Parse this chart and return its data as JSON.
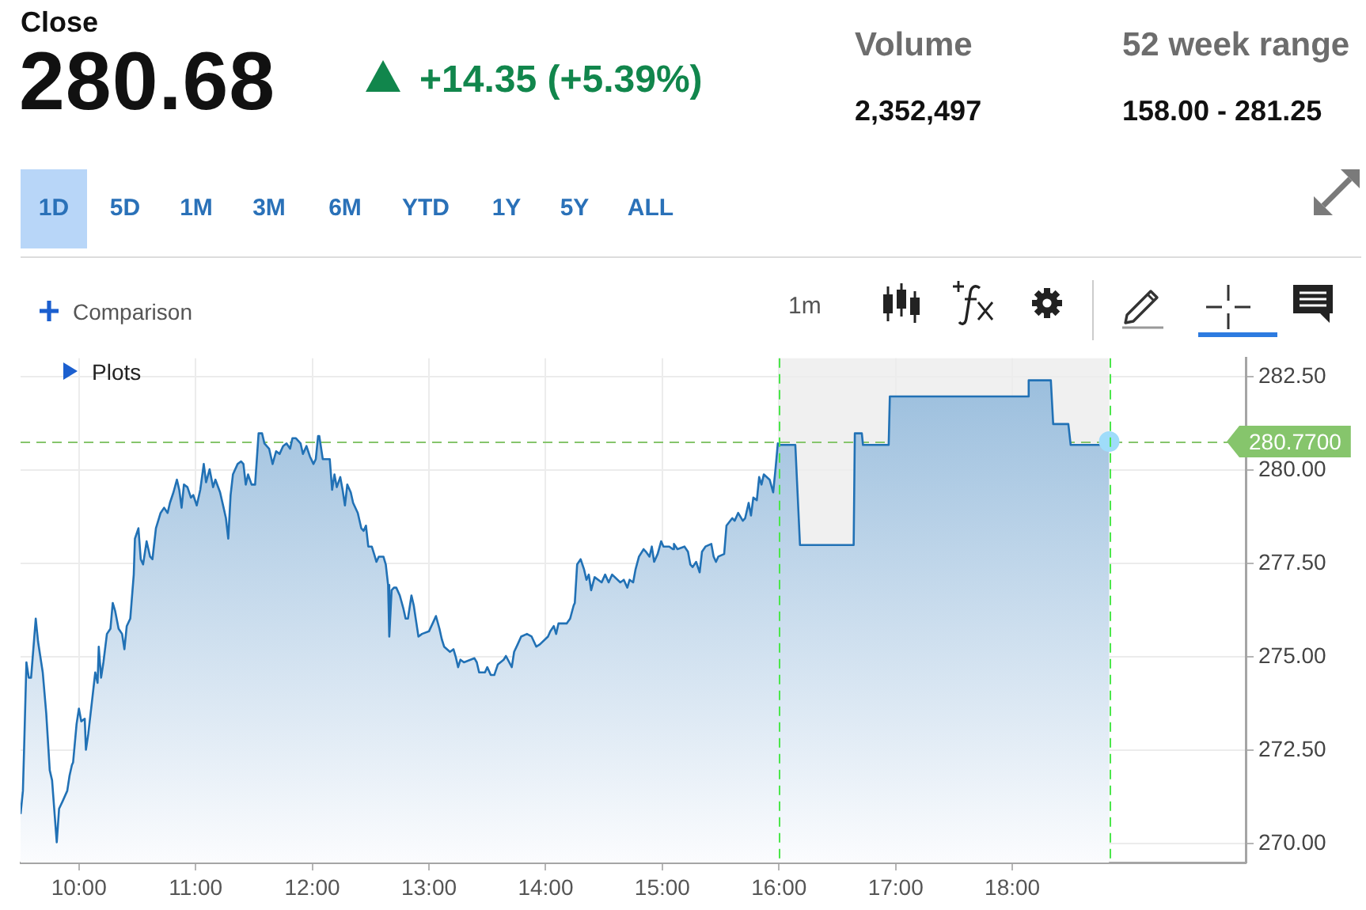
{
  "chart_data": {
    "type": "area",
    "title": "Close",
    "subtitle": "280.68",
    "annotations": [
      "+14.35 (+5.39%)",
      "Volume",
      "2,352,497",
      "52 week range",
      "158.00 - 281.25",
      "1D",
      "5D",
      "1M",
      "3M",
      "6M",
      "YTD",
      "1Y",
      "5Y",
      "ALL",
      "Comparison",
      "1m",
      "Plots"
    ],
    "series": [
      {
        "type": "area",
        "color": "#2171b5",
        "x": [
          9.5,
          9.52,
          9.53,
          9.55,
          9.57,
          9.59,
          9.63,
          9.65,
          9.69,
          9.72,
          9.75,
          9.77,
          9.81,
          9.83,
          9.86,
          9.9,
          9.92,
          9.94,
          9.95,
          9.98,
          10,
          10.02,
          10.05,
          10.06,
          10.08,
          10.11,
          10.14,
          10.16,
          10.17,
          10.19,
          10.21,
          10.24,
          10.27,
          10.29,
          10.31,
          10.34,
          10.37,
          10.39,
          10.41,
          10.44,
          10.47,
          10.48,
          10.51,
          10.53,
          10.55,
          10.58,
          10.61,
          10.63,
          10.66,
          10.7,
          10.73,
          10.76,
          10.78,
          10.81,
          10.84,
          10.86,
          10.88,
          10.9,
          10.93,
          10.96,
          10.98,
          11.01,
          11.04,
          11.07,
          11.09,
          11.12,
          11.15,
          11.17,
          11.21,
          11.24,
          11.26,
          11.28,
          11.3,
          11.32,
          11.36,
          11.39,
          11.41,
          11.43,
          11.45,
          11.48,
          11.51,
          11.54,
          11.57,
          11.59,
          11.63,
          11.66,
          11.69,
          11.72,
          11.75,
          11.78,
          11.81,
          11.83,
          11.86,
          11.9,
          11.92,
          11.95,
          11.98,
          12.01,
          12.03,
          12.05,
          12.06,
          12.09,
          12.15,
          12.17,
          12.19,
          12.21,
          12.24,
          12.26,
          12.28,
          12.3,
          12.33,
          12.35,
          12.39,
          12.42,
          12.44,
          12.46,
          12.48,
          12.51,
          12.53,
          12.55,
          12.57,
          12.61,
          12.63,
          12.65,
          12.66,
          12.68,
          12.7,
          12.72,
          12.75,
          12.78,
          12.8,
          12.82,
          12.85,
          12.87,
          12.89,
          12.91,
          12.94,
          13,
          13.04,
          13.06,
          13.09,
          13.11,
          13.13,
          13.18,
          13.21,
          13.23,
          13.25,
          13.27,
          13.3,
          13.39,
          13.41,
          13.43,
          13.48,
          13.5,
          13.53,
          13.56,
          13.59,
          13.64,
          13.66,
          13.71,
          13.73,
          13.76,
          13.79,
          13.84,
          13.88,
          13.92,
          13.95,
          14.02,
          14.04,
          14.07,
          14.09,
          14.11,
          14.18,
          14.21,
          14.24,
          14.25,
          14.27,
          14.3,
          14.33,
          14.35,
          14.37,
          14.39,
          14.42,
          14.48,
          14.51,
          14.54,
          14.57,
          14.64,
          14.67,
          14.7,
          14.72,
          14.75,
          14.77,
          14.8,
          14.84,
          14.86,
          14.89,
          14.91,
          14.93,
          14.96,
          14.99,
          15.01,
          15.06,
          15.09,
          15.1,
          15.13,
          15.19,
          15.22,
          15.24,
          15.26,
          15.29,
          15.32,
          15.34,
          15.37,
          15.42,
          15.44,
          15.46,
          15.48,
          15.53,
          15.55,
          15.6,
          15.62,
          15.65,
          15.69,
          15.71,
          15.74,
          15.76,
          15.78,
          15.81,
          15.83,
          15.85,
          15.87,
          15.92,
          15.95,
          15.97,
          15.99,
          16,
          16.14,
          16.18,
          16.64,
          16.65,
          16.71,
          16.72,
          16.94,
          16.95,
          18.13,
          18.14,
          18.33,
          18.35,
          18.48,
          18.5,
          18.81,
          18.83
        ],
        "values": [
          270.8,
          271.42,
          272.52,
          274.86,
          274.45,
          274.45,
          276.03,
          275.41,
          274.59,
          273.49,
          271.97,
          271.7,
          270.04,
          270.94,
          271.14,
          271.42,
          271.83,
          272.11,
          272.18,
          273.21,
          273.62,
          273.28,
          273.35,
          272.52,
          272.94,
          273.76,
          274.59,
          274.31,
          275.28,
          274.45,
          274.86,
          275.62,
          275.76,
          276.45,
          276.24,
          275.76,
          275.62,
          275.21,
          275.83,
          276.03,
          277.21,
          278.17,
          278.45,
          277.62,
          277.48,
          278.1,
          277.69,
          277.62,
          278.45,
          278.86,
          279,
          278.86,
          279.13,
          279.41,
          279.75,
          279.48,
          279,
          279.62,
          279.55,
          279.27,
          279.34,
          279.06,
          279.48,
          280.17,
          279.68,
          280.03,
          279.55,
          279.75,
          279.41,
          279,
          278.72,
          278.17,
          279.34,
          279.89,
          280.17,
          280.24,
          280.17,
          279.62,
          279.89,
          279.62,
          279.62,
          280.99,
          280.99,
          280.72,
          280.58,
          280.17,
          280.51,
          280.44,
          280.65,
          280.72,
          280.58,
          280.86,
          280.86,
          280.72,
          280.44,
          280.65,
          280.37,
          280.17,
          280.3,
          280.92,
          280.92,
          280.3,
          280.3,
          279.48,
          279.89,
          279.55,
          279.82,
          279.48,
          279.06,
          279.62,
          279.41,
          279.13,
          278.86,
          278.45,
          278.38,
          278.52,
          277.96,
          277.96,
          277.76,
          277.55,
          277.69,
          277.69,
          277.48,
          276.93,
          275.55,
          276.79,
          276.86,
          276.86,
          276.65,
          276.31,
          276.03,
          276.03,
          276.65,
          276.38,
          275.96,
          275.55,
          275.62,
          275.69,
          275.96,
          276.1,
          275.76,
          275.48,
          275.28,
          275.14,
          275.21,
          275,
          274.73,
          274.93,
          274.86,
          274.97,
          274.86,
          274.59,
          274.59,
          274.73,
          274.52,
          274.52,
          274.8,
          274.93,
          275.03,
          274.73,
          275.14,
          275.34,
          275.55,
          275.62,
          275.55,
          275.28,
          275.34,
          275.55,
          275.69,
          275.83,
          275.62,
          275.9,
          275.9,
          276.03,
          276.38,
          276.45,
          277.48,
          277.62,
          277.34,
          277.07,
          277.21,
          276.79,
          277.14,
          277,
          277.21,
          277,
          277.21,
          277,
          277.07,
          276.86,
          277.07,
          277,
          277.34,
          277.69,
          277.89,
          277.82,
          277.69,
          277.96,
          277.55,
          277.76,
          278.1,
          277.96,
          277.96,
          277.89,
          278.03,
          277.89,
          277.96,
          277.82,
          277.48,
          277.41,
          277.55,
          277.27,
          277.82,
          277.96,
          278.03,
          277.69,
          277.55,
          277.69,
          277.76,
          278.52,
          278.72,
          278.65,
          278.86,
          278.65,
          278.72,
          279.13,
          278.79,
          279.27,
          279.2,
          279.82,
          279.62,
          279.89,
          279.75,
          279.41,
          280.03,
          280.72,
          280.68,
          280.68,
          278,
          278,
          280.99,
          280.99,
          280.68,
          280.68,
          281.98,
          281.98,
          282.41,
          282.41,
          281.24,
          281.24,
          280.68,
          280.68,
          280.77
        ]
      },
      {
        "type": "scatter",
        "color": "#9fdcfa",
        "marker": "circle",
        "x": [
          18.83
        ],
        "values": [
          280.77
        ]
      }
    ],
    "xlim": [
      9.5,
      20
    ],
    "xticks": [
      {
        "value": 10,
        "label": "10:00"
      },
      {
        "value": 11,
        "label": "11:00"
      },
      {
        "value": 12,
        "label": "12:00"
      },
      {
        "value": 13,
        "label": "13:00"
      },
      {
        "value": 14,
        "label": "14:00"
      },
      {
        "value": 15,
        "label": "15:00"
      },
      {
        "value": 16,
        "label": "16:00"
      },
      {
        "value": 17,
        "label": "17:00"
      },
      {
        "value": 18,
        "label": "18:00"
      }
    ],
    "ylim": [
      269.5,
      283
    ],
    "yticks": [
      {
        "value": 270,
        "label": "270.00"
      },
      {
        "value": 272.5,
        "label": "272.50"
      },
      {
        "value": 275,
        "label": "275.00"
      },
      {
        "value": 277.5,
        "label": "277.50"
      },
      {
        "value": 280,
        "label": "280.00"
      },
      {
        "value": 282.5,
        "label": "282.50"
      }
    ],
    "grid": true,
    "ref_lines": [
      {
        "axis": "y",
        "value": 280.77,
        "label": "280.7700",
        "color": "#86c56c",
        "line_style": "dashed"
      },
      {
        "axis": "x",
        "value": 16,
        "color": "#4be64b",
        "line_style": "dashed"
      },
      {
        "axis": "x",
        "value": 18.83,
        "color": "#4be64b",
        "line_style": "dashed"
      }
    ],
    "bands": [
      {
        "axis": "x",
        "from": 16,
        "to": 18.83,
        "color": "#f0f0f0"
      }
    ]
  }
}
